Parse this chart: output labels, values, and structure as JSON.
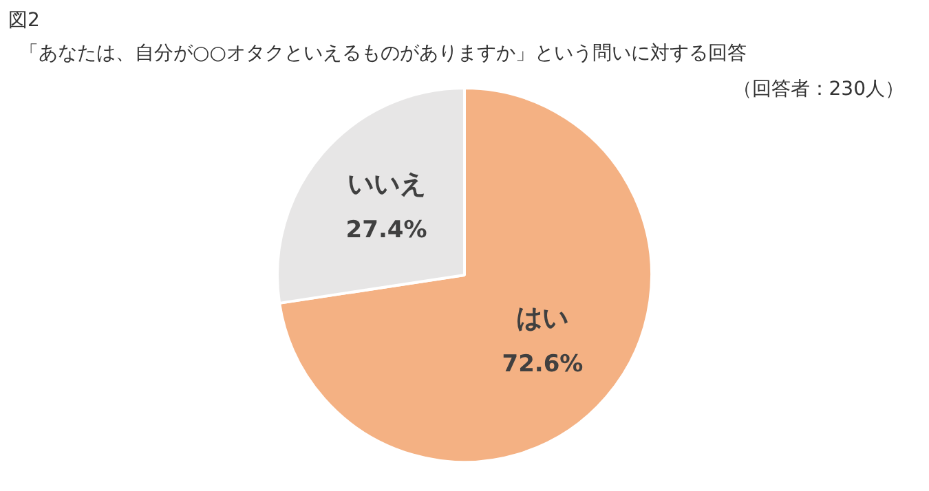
{
  "chart_data": {
    "type": "pie",
    "title": "図2",
    "subtitle": "「あなたは、自分が○○オタクといえるものがありますか」という問いに対する回答",
    "annotations": [
      "（回答者：230人）"
    ],
    "categories": [
      "はい",
      "いいえ"
    ],
    "values": [
      72.6,
      27.4
    ],
    "colors": [
      "#f4b183",
      "#e7e6e6"
    ],
    "value_labels": [
      "72.6%",
      "27.4%"
    ],
    "legend": false
  }
}
